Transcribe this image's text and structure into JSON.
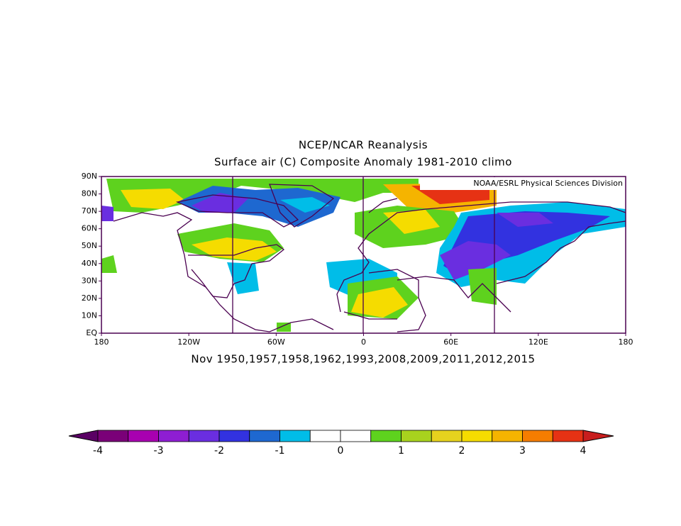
{
  "header": {
    "title": "NCEP/NCAR Reanalysis",
    "subtitle": "Surface air (C) Composite Anomaly 1981-2010 climo"
  },
  "map": {
    "credit": "NOAA/ESRL Physical Sciences Division",
    "lat_labels": [
      "90N",
      "80N",
      "70N",
      "60N",
      "50N",
      "40N",
      "30N",
      "20N",
      "10N",
      "EQ"
    ],
    "lon_labels": [
      "180",
      "120W",
      "60W",
      "0",
      "60E",
      "120E",
      "180"
    ],
    "caption": "Nov 1950,1957,1958,1962,1993,2008,2009,2011,2012,2015"
  },
  "colorbar": {
    "ticks": [
      -4,
      -3,
      -2,
      -1,
      0,
      1,
      2,
      3,
      4
    ],
    "colors": [
      "#7a0078",
      "#a800b0",
      "#8e1ed2",
      "#6a2ee0",
      "#3232e0",
      "#1e68d0",
      "#00bde8",
      "#ffffff",
      "#ffffff",
      "#5ed21e",
      "#a8d21e",
      "#e6d21e",
      "#f5dc00",
      "#f5b400",
      "#f57d00",
      "#e63214"
    ],
    "low_color": "#5a0064",
    "high_color": "#c81e1e"
  }
}
